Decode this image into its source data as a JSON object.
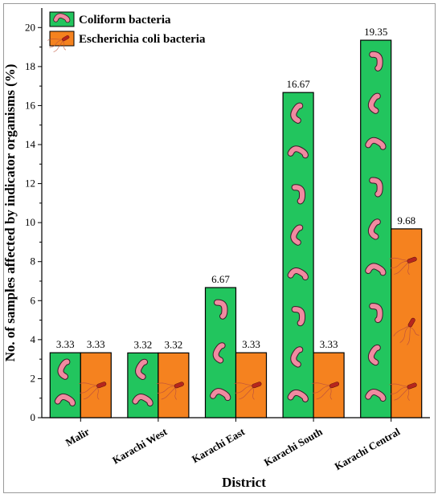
{
  "chart_data": {
    "type": "bar",
    "xlabel": "District",
    "ylabel": "No. of samples affected by indicator organisms (%)",
    "categories": [
      "Malir",
      "Karachi West",
      "Karachi East",
      "Karachi South",
      "Karachi Central"
    ],
    "series": [
      {
        "name": "Coliform bacteria",
        "color": "#22c55e",
        "icon": "coliform-rod-icon",
        "values": [
          3.33,
          3.32,
          6.67,
          16.67,
          19.35
        ]
      },
      {
        "name": "Escherichia coli bacteria",
        "color": "#f5821f",
        "icon": "e-coli-flagella-icon",
        "values": [
          3.33,
          3.32,
          3.33,
          3.33,
          9.68
        ]
      }
    ],
    "data_labels": [
      [
        "3.33",
        "3.32",
        "6.67",
        "16.67",
        "19.35"
      ],
      [
        "3.33",
        "3.32",
        "3.33",
        "3.33",
        "9.68"
      ]
    ],
    "ylim": [
      0,
      21
    ],
    "yticks": [
      0,
      2,
      4,
      6,
      8,
      10,
      12,
      14,
      16,
      18,
      20
    ],
    "legend_position": "top-left",
    "grid": false
  }
}
